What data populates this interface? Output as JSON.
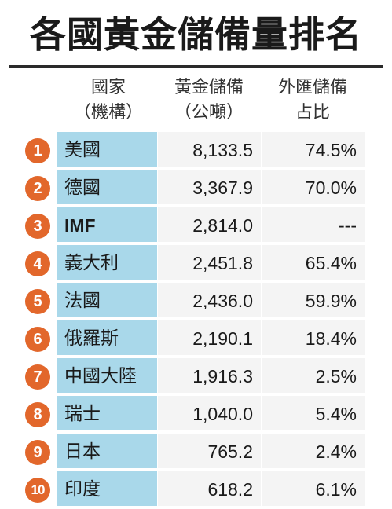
{
  "title": "各國黃金儲備量排名",
  "header": {
    "country": [
      "國家",
      "（機構）"
    ],
    "gold": [
      "黃金儲備",
      "（公噸）"
    ],
    "share": [
      "外匯儲備",
      "占比"
    ]
  },
  "colors": {
    "badge": "#e2672b",
    "name_cell": "#a9d8ea",
    "value_cell": "#f4f4f4"
  },
  "rows": [
    {
      "rank": "1",
      "name": "美國",
      "gold_tonnes": "8,133.5",
      "fx_share": "74.5%"
    },
    {
      "rank": "2",
      "name": "德國",
      "gold_tonnes": "3,367.9",
      "fx_share": "70.0%"
    },
    {
      "rank": "3",
      "name": "IMF",
      "gold_tonnes": "2,814.0",
      "fx_share": "---"
    },
    {
      "rank": "4",
      "name": "義大利",
      "gold_tonnes": "2,451.8",
      "fx_share": "65.4%"
    },
    {
      "rank": "5",
      "name": "法國",
      "gold_tonnes": "2,436.0",
      "fx_share": "59.9%"
    },
    {
      "rank": "6",
      "name": "俄羅斯",
      "gold_tonnes": "2,190.1",
      "fx_share": "18.4%"
    },
    {
      "rank": "7",
      "name": "中國大陸",
      "gold_tonnes": "1,916.3",
      "fx_share": "2.5%"
    },
    {
      "rank": "8",
      "name": "瑞士",
      "gold_tonnes": "1,040.0",
      "fx_share": "5.4%"
    },
    {
      "rank": "9",
      "name": "日本",
      "gold_tonnes": "765.2",
      "fx_share": "2.4%"
    },
    {
      "rank": "10",
      "name": "印度",
      "gold_tonnes": "618.2",
      "fx_share": "6.1%"
    }
  ]
}
